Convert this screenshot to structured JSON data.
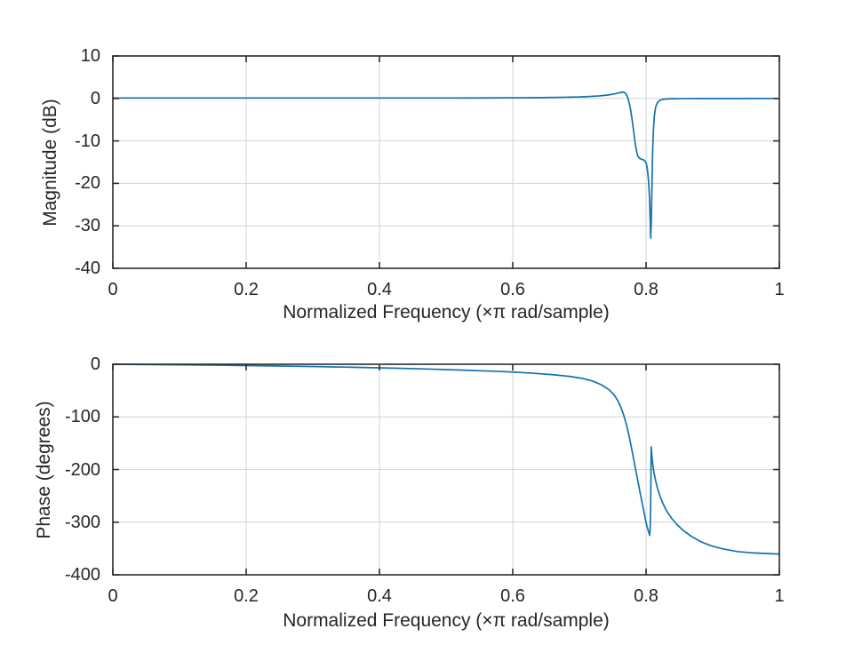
{
  "figure": {
    "background": "#ffffff",
    "line_color": "#1273ad",
    "grid_color": "#d4d4d4",
    "axis_color": "#2b2b2b",
    "text_color": "#262626"
  },
  "chart_data": [
    {
      "id": "magnitude",
      "type": "line",
      "title": "",
      "xlabel": "Normalized Frequency (×π rad/sample)",
      "ylabel": "Magnitude (dB)",
      "xlim": [
        0,
        1
      ],
      "ylim": [
        -40,
        10
      ],
      "xticks": [
        0,
        0.2,
        0.4,
        0.6,
        0.8,
        1
      ],
      "xtick_labels": [
        "0",
        "0.2",
        "0.4",
        "0.6",
        "0.8",
        "1"
      ],
      "yticks": [
        10,
        0,
        -10,
        -20,
        -30,
        -40
      ],
      "ytick_labels": [
        "10",
        "0",
        "-10",
        "-20",
        "-30",
        "-40"
      ],
      "grid": true,
      "legend_position": "none",
      "series": [
        {
          "name": "magnitude-response",
          "color": "#1273ad",
          "points": [
            [
              0,
              0.1
            ],
            [
              0.05,
              0.1
            ],
            [
              0.1,
              0.1
            ],
            [
              0.15,
              0.1
            ],
            [
              0.2,
              0.1
            ],
            [
              0.25,
              0.1
            ],
            [
              0.3,
              0.1
            ],
            [
              0.35,
              0.1
            ],
            [
              0.4,
              0.1
            ],
            [
              0.45,
              0.1
            ],
            [
              0.5,
              0.1
            ],
            [
              0.55,
              0.12
            ],
            [
              0.6,
              0.15
            ],
            [
              0.64,
              0.2
            ],
            [
              0.67,
              0.26
            ],
            [
              0.7,
              0.35
            ],
            [
              0.715,
              0.45
            ],
            [
              0.73,
              0.6
            ],
            [
              0.742,
              0.8
            ],
            [
              0.752,
              1.05
            ],
            [
              0.759,
              1.3
            ],
            [
              0.764,
              1.5
            ],
            [
              0.767,
              1.45
            ],
            [
              0.7695,
              1.15
            ],
            [
              0.7715,
              0.6
            ],
            [
              0.7735,
              -0.3
            ],
            [
              0.7755,
              -1.6
            ],
            [
              0.7775,
              -3.3
            ],
            [
              0.7795,
              -5.5
            ],
            [
              0.7815,
              -7.9
            ],
            [
              0.7835,
              -10.3
            ],
            [
              0.7855,
              -12.3
            ],
            [
              0.7875,
              -13.5
            ],
            [
              0.79,
              -14.1
            ],
            [
              0.793,
              -14.3
            ],
            [
              0.796,
              -14.45
            ],
            [
              0.7985,
              -14.75
            ],
            [
              0.8005,
              -15.4
            ],
            [
              0.8022,
              -16.9
            ],
            [
              0.8038,
              -19.5
            ],
            [
              0.8052,
              -23.5
            ],
            [
              0.8062,
              -28.5
            ],
            [
              0.807,
              -32.9
            ],
            [
              0.8078,
              -29
            ],
            [
              0.8088,
              -21
            ],
            [
              0.8098,
              -13
            ],
            [
              0.811,
              -7.5
            ],
            [
              0.8125,
              -4
            ],
            [
              0.8145,
              -2
            ],
            [
              0.817,
              -1
            ],
            [
              0.82,
              -0.5
            ],
            [
              0.824,
              -0.25
            ],
            [
              0.83,
              -0.12
            ],
            [
              0.84,
              -0.06
            ],
            [
              0.86,
              -0.03
            ],
            [
              0.88,
              -0.02
            ],
            [
              0.9,
              -0.02
            ],
            [
              0.92,
              -0.01
            ],
            [
              0.95,
              -0.01
            ],
            [
              1,
              0
            ]
          ]
        }
      ]
    },
    {
      "id": "phase",
      "type": "line",
      "title": "",
      "xlabel": "Normalized Frequency (×π rad/sample)",
      "ylabel": "Phase (degrees)",
      "xlim": [
        0,
        1
      ],
      "ylim": [
        -400,
        0
      ],
      "xticks": [
        0,
        0.2,
        0.4,
        0.6,
        0.8,
        1
      ],
      "xtick_labels": [
        "0",
        "0.2",
        "0.4",
        "0.6",
        "0.8",
        "1"
      ],
      "yticks": [
        0,
        -100,
        -200,
        -300,
        -400
      ],
      "ytick_labels": [
        "0",
        "-100",
        "-200",
        "-300",
        "-400"
      ],
      "grid": true,
      "legend_position": "none",
      "series": [
        {
          "name": "phase-response",
          "color": "#1273ad",
          "points": [
            [
              0,
              0
            ],
            [
              0.06,
              -0.6
            ],
            [
              0.12,
              -1.3
            ],
            [
              0.18,
              -2.1
            ],
            [
              0.24,
              -3.1
            ],
            [
              0.3,
              -4.3
            ],
            [
              0.36,
              -5.7
            ],
            [
              0.42,
              -7.4
            ],
            [
              0.47,
              -9
            ],
            [
              0.52,
              -11
            ],
            [
              0.57,
              -13.2
            ],
            [
              0.6,
              -14.8
            ],
            [
              0.63,
              -17
            ],
            [
              0.66,
              -19.8
            ],
            [
              0.685,
              -23
            ],
            [
              0.705,
              -27
            ],
            [
              0.72,
              -32
            ],
            [
              0.733,
              -39
            ],
            [
              0.744,
              -48
            ],
            [
              0.752,
              -58
            ],
            [
              0.758,
              -70
            ],
            [
              0.763,
              -84
            ],
            [
              0.767,
              -99
            ],
            [
              0.771,
              -117
            ],
            [
              0.7745,
              -136
            ],
            [
              0.778,
              -158
            ],
            [
              0.7815,
              -181
            ],
            [
              0.785,
              -204
            ],
            [
              0.7885,
              -227
            ],
            [
              0.792,
              -250
            ],
            [
              0.7955,
              -272
            ],
            [
              0.7985,
              -291
            ],
            [
              0.801,
              -306
            ],
            [
              0.8035,
              -317
            ],
            [
              0.8055,
              -325
            ],
            [
              0.8062,
              -312
            ],
            [
              0.8068,
              -275
            ],
            [
              0.8073,
              -220
            ],
            [
              0.8077,
              -157
            ],
            [
              0.8085,
              -170
            ],
            [
              0.81,
              -190
            ],
            [
              0.812,
              -207
            ],
            [
              0.8145,
              -222
            ],
            [
              0.8175,
              -237
            ],
            [
              0.821,
              -251
            ],
            [
              0.8255,
              -265
            ],
            [
              0.831,
              -279
            ],
            [
              0.838,
              -292
            ],
            [
              0.846,
              -304
            ],
            [
              0.856,
              -316
            ],
            [
              0.868,
              -327
            ],
            [
              0.882,
              -337
            ],
            [
              0.898,
              -345
            ],
            [
              0.916,
              -351
            ],
            [
              0.938,
              -356
            ],
            [
              0.962,
              -358.5
            ],
            [
              1,
              -360.5
            ]
          ]
        }
      ]
    }
  ]
}
